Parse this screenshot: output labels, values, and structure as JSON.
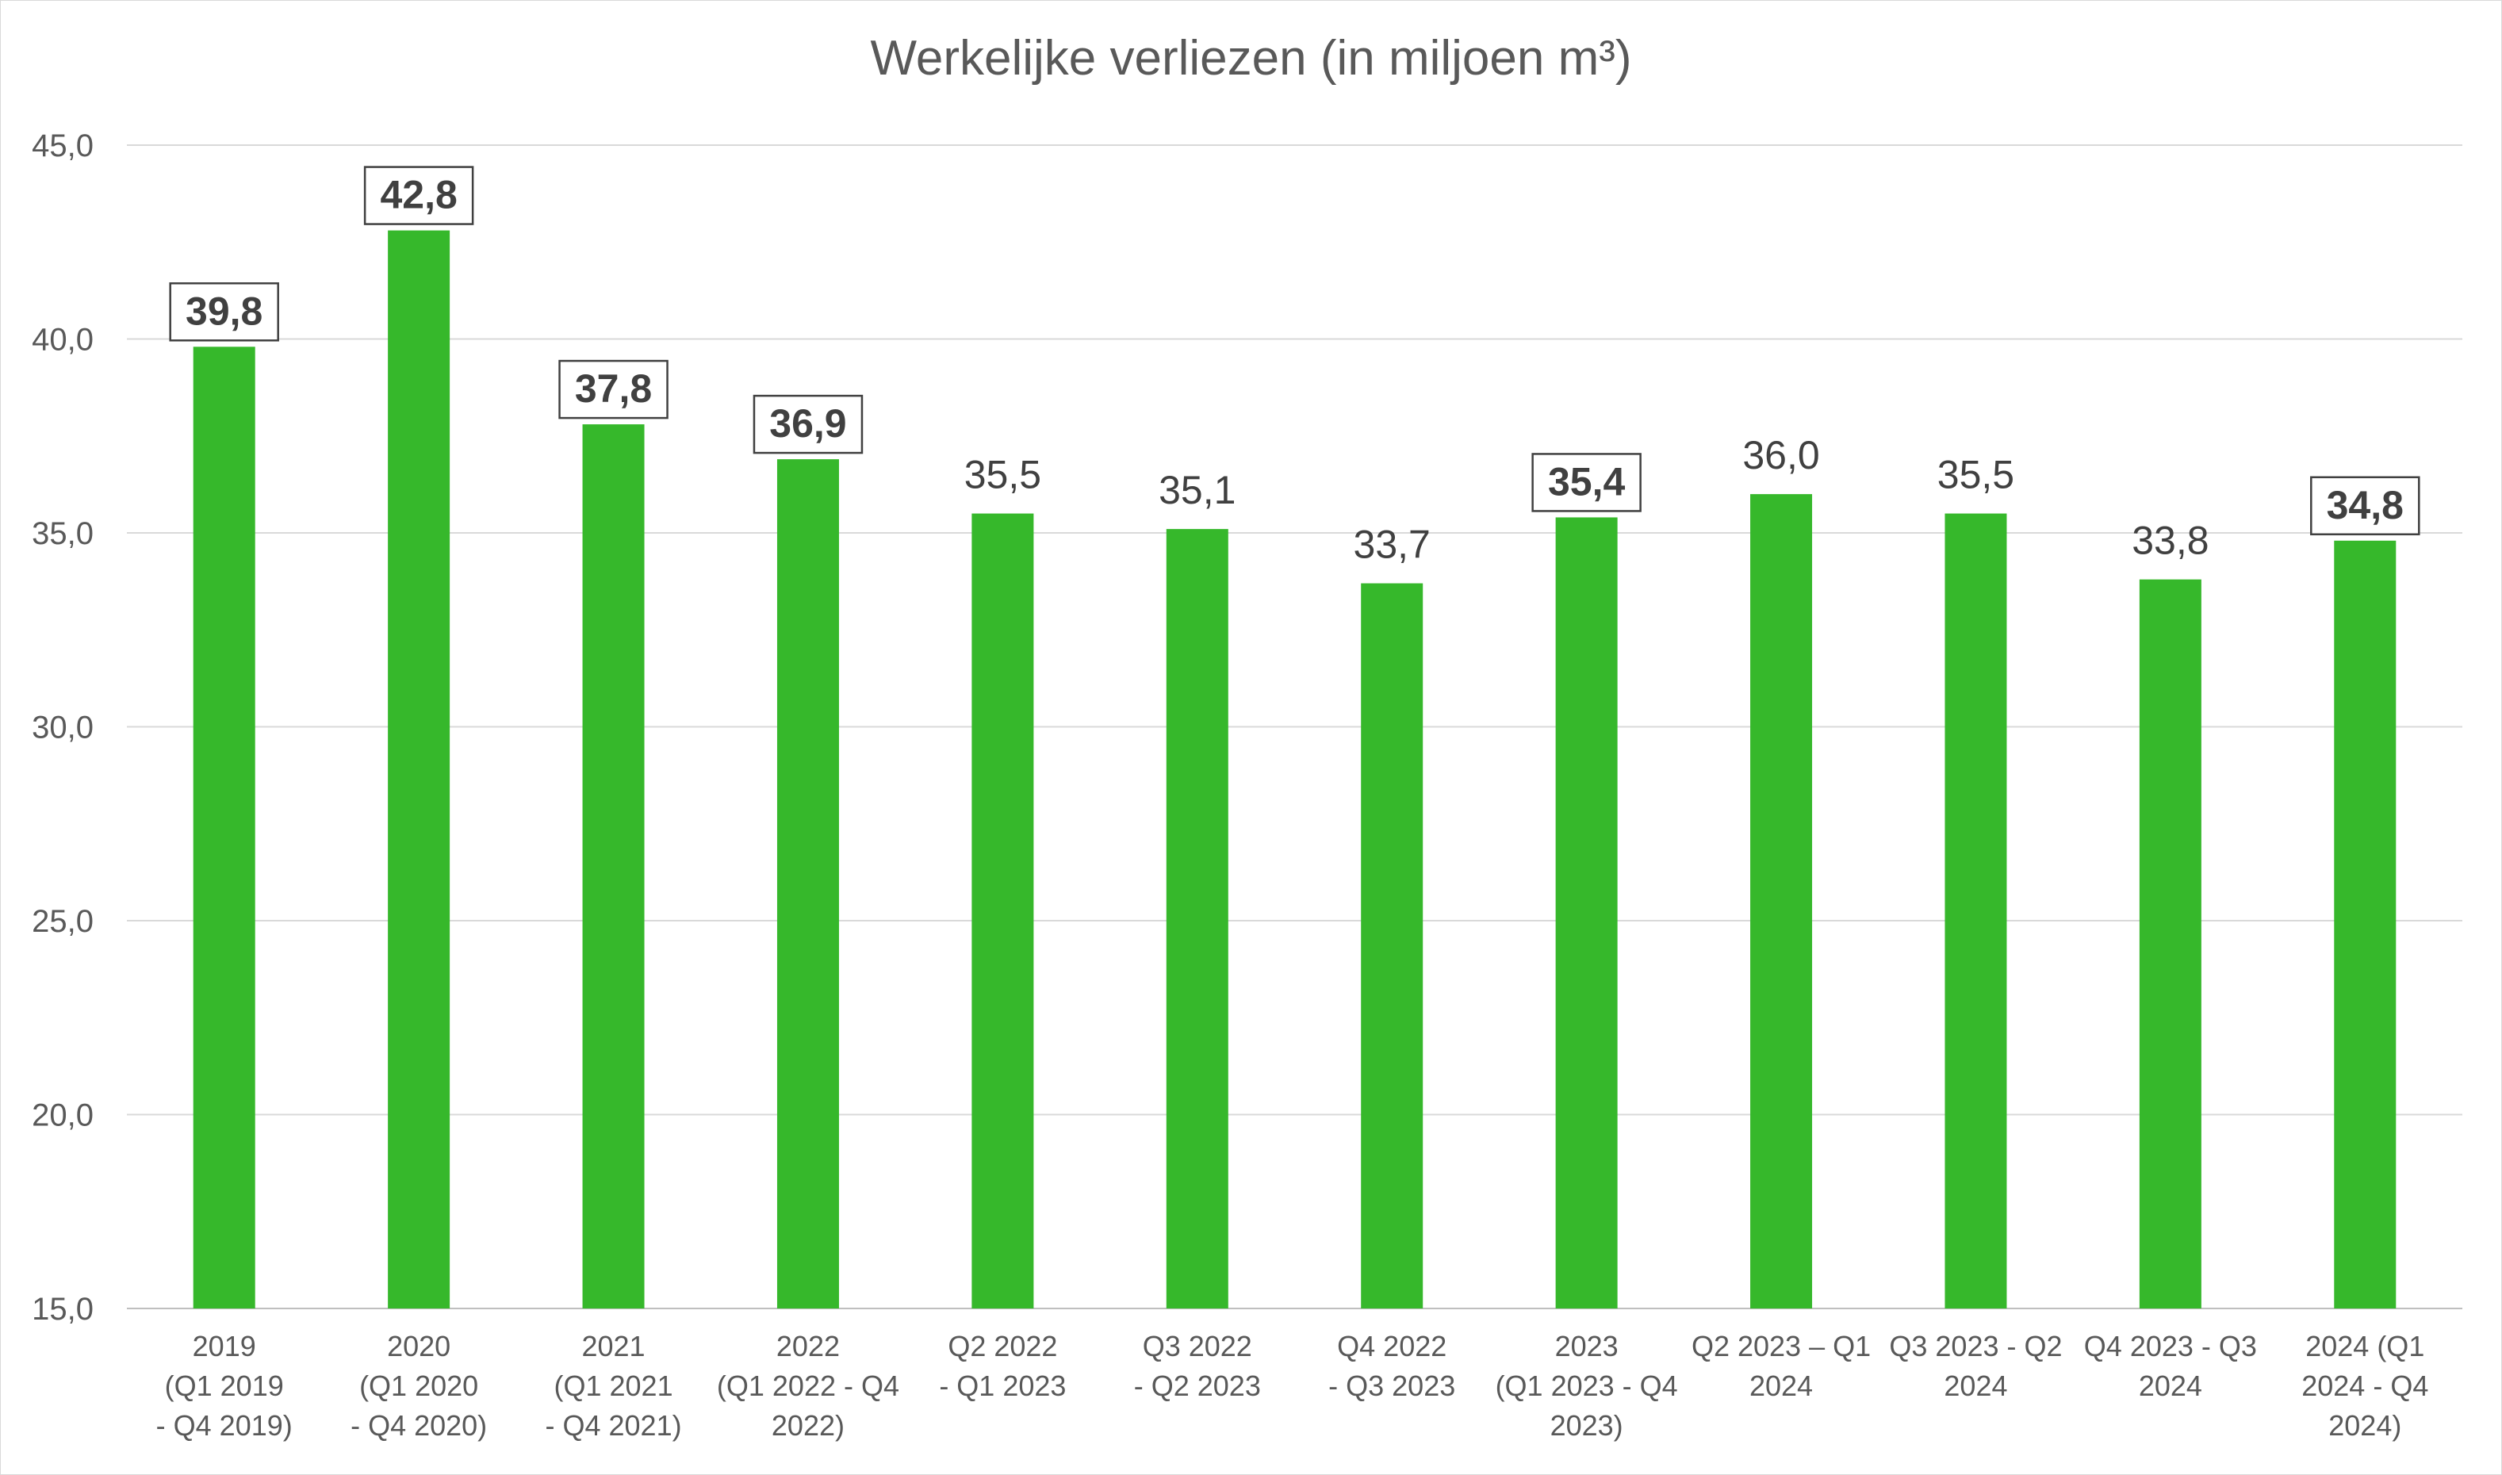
{
  "chart_data": {
    "type": "bar",
    "title": "Werkelijke verliezen (in miljoen m³)",
    "xlabel": "",
    "ylabel": "",
    "ylim": [
      15,
      45
    ],
    "yticks": [
      "15,0",
      "20,0",
      "25,0",
      "30,0",
      "35,0",
      "40,0",
      "45,0"
    ],
    "grid": true,
    "bar_color": "#36b82b",
    "categories": [
      [
        "2019",
        "(Q1 2019",
        "- Q4 2019)"
      ],
      [
        "2020",
        "(Q1 2020",
        "- Q4 2020)"
      ],
      [
        "2021",
        "(Q1 2021",
        "- Q4 2021)"
      ],
      [
        "2022",
        "(Q1 2022 - Q4",
        "2022)"
      ],
      [
        "Q2 2022",
        "- Q1 2023"
      ],
      [
        "Q3 2022",
        "- Q2 2023"
      ],
      [
        "Q4 2022",
        "- Q3 2023"
      ],
      [
        "2023",
        "(Q1 2023 - Q4",
        "2023)"
      ],
      [
        "Q2 2023 – Q1",
        "2024"
      ],
      [
        "Q3 2023 - Q2",
        "2024"
      ],
      [
        "Q4 2023 - Q3",
        "2024"
      ],
      [
        "2024 (Q1",
        "2024 - Q4",
        "2024)"
      ]
    ],
    "values": [
      39.8,
      42.8,
      37.8,
      36.9,
      35.5,
      35.1,
      33.7,
      35.4,
      36.0,
      35.5,
      33.8,
      34.8
    ],
    "data_labels": [
      "39,8",
      "42,8",
      "37,8",
      "36,9",
      "35,5",
      "35,1",
      "33,7",
      "35,4",
      "36,0",
      "35,5",
      "33,8",
      "34,8"
    ],
    "boxed_labels": [
      true,
      true,
      true,
      true,
      false,
      false,
      false,
      true,
      false,
      false,
      false,
      true
    ]
  }
}
